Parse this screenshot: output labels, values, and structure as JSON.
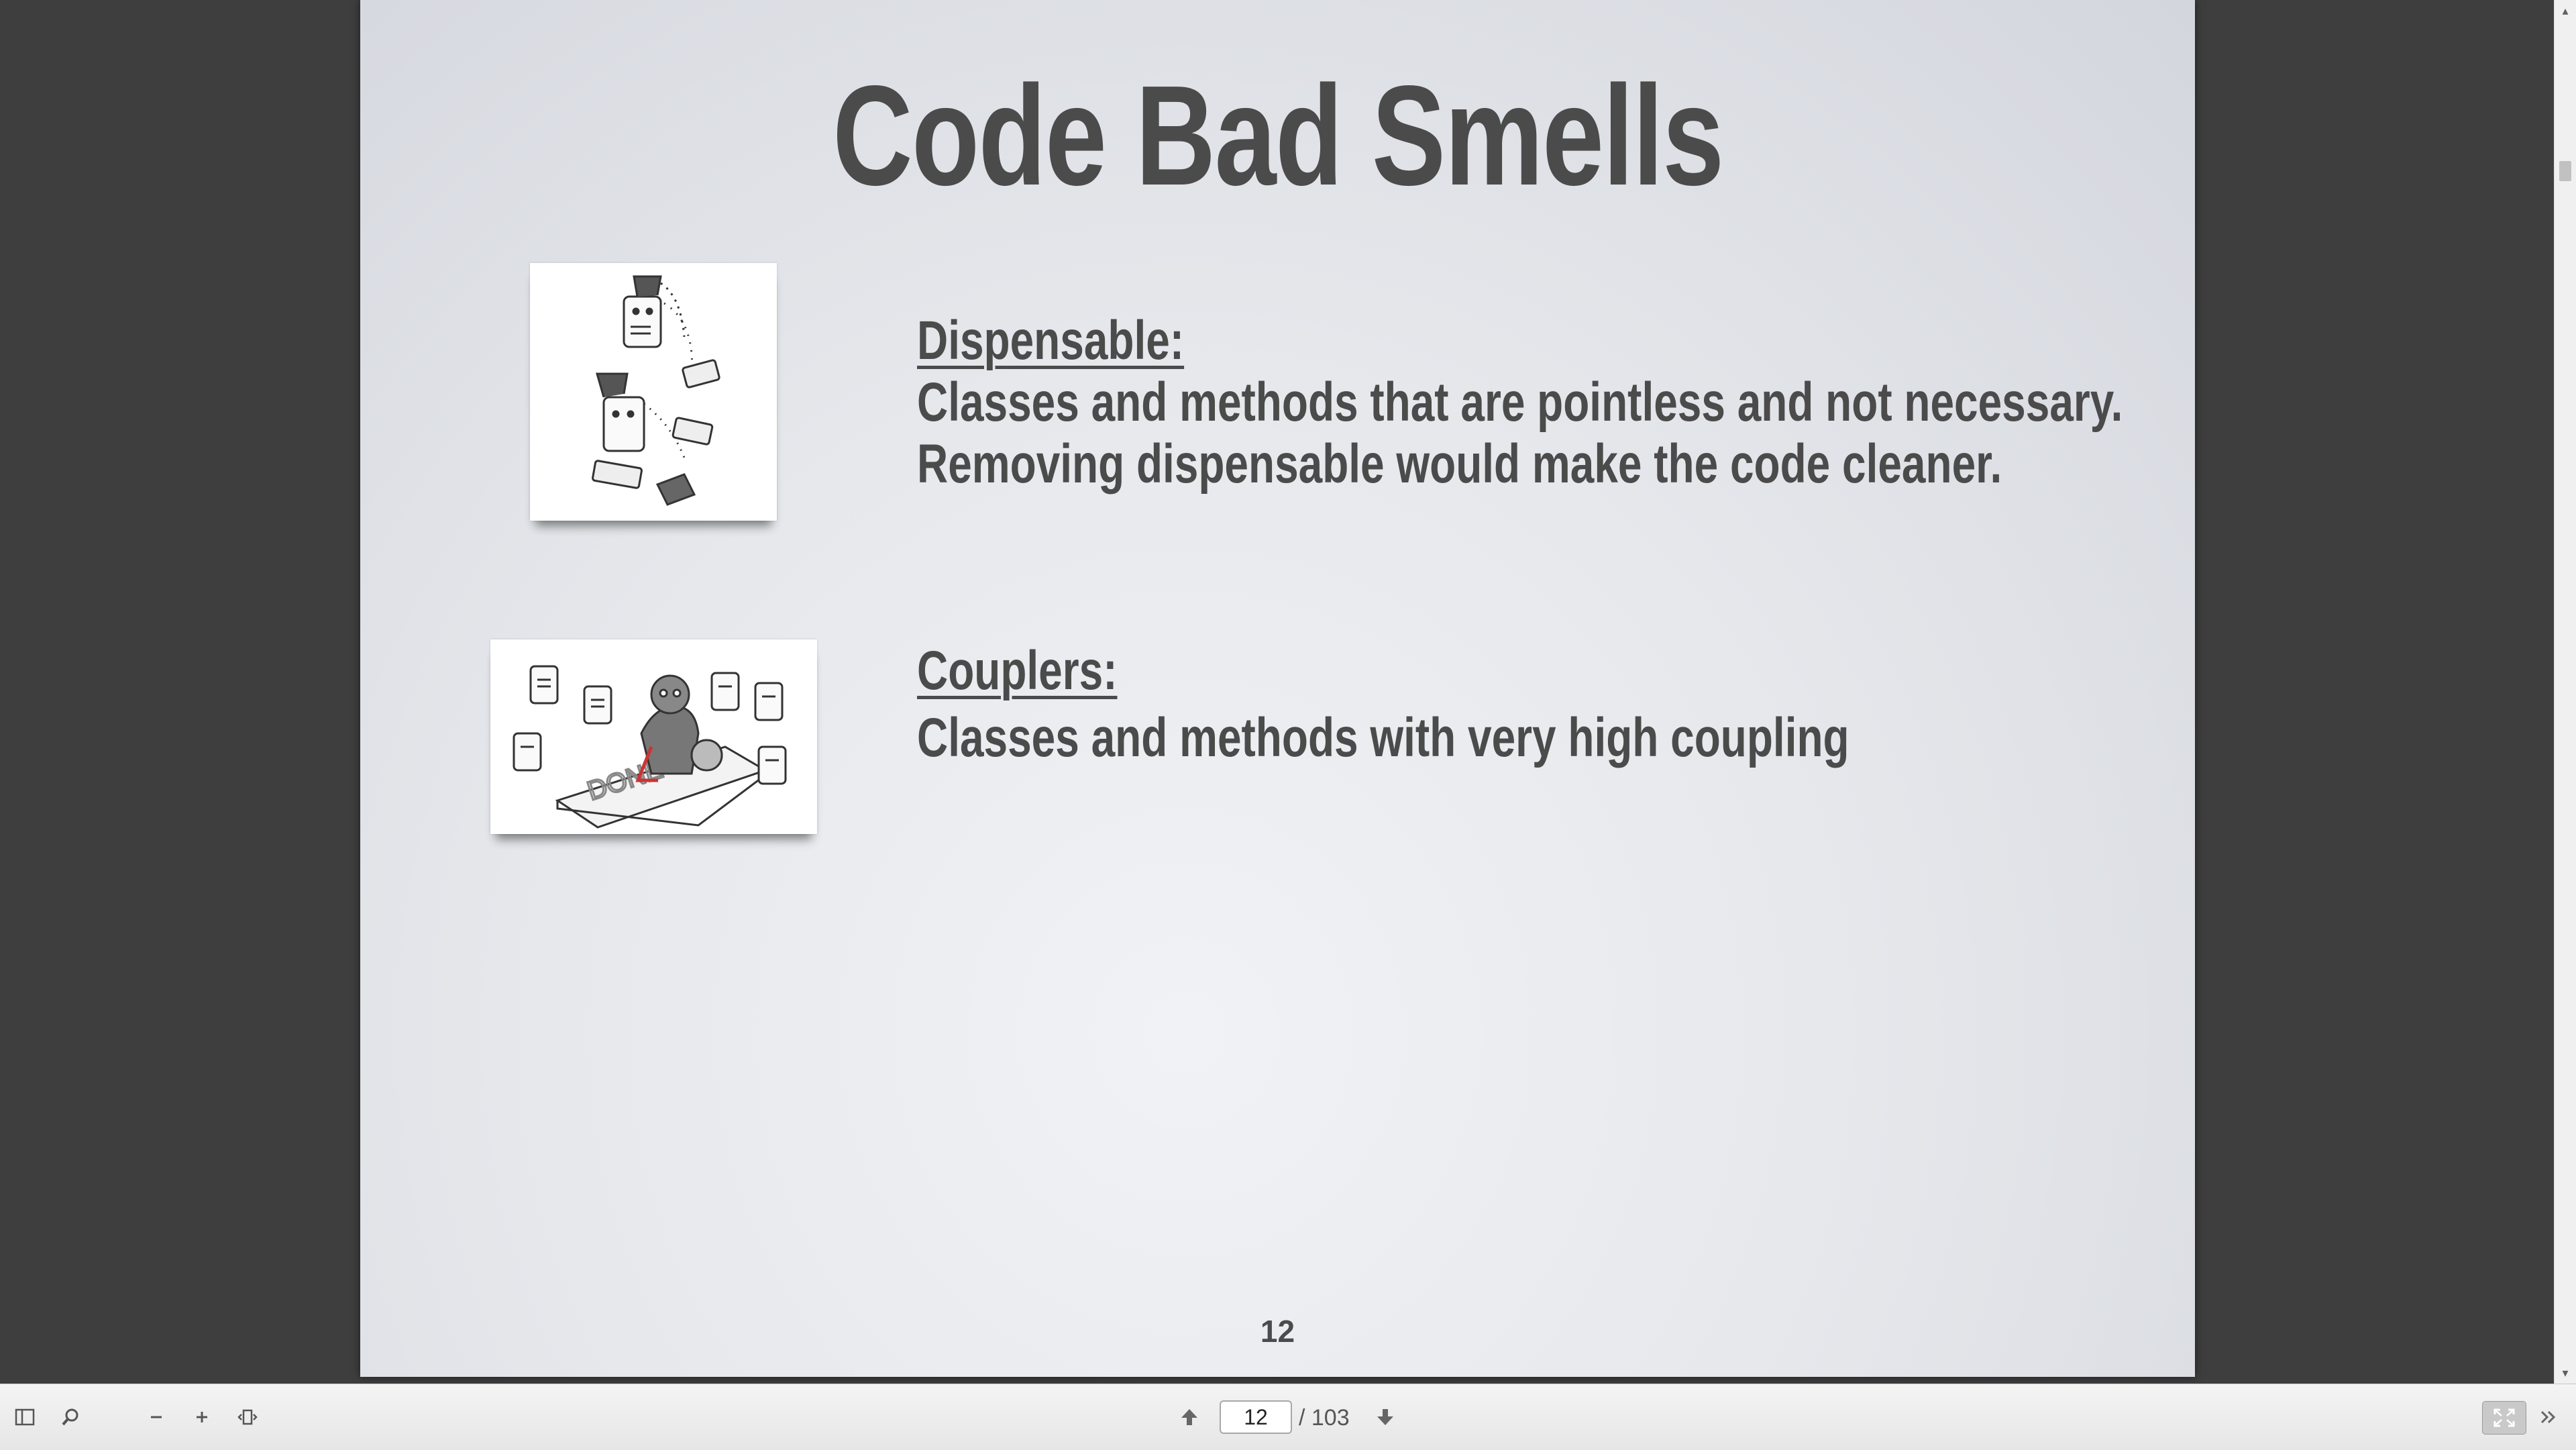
{
  "slide": {
    "title": "Code Bad Smells",
    "sections": [
      {
        "heading": "Dispensable:",
        "lines": [
          "Classes and methods that are pointless and not necessary.",
          "Removing dispensable would make the code cleaner."
        ]
      },
      {
        "heading": "Couplers:",
        "lines": [
          "Classes and methods with very high coupling"
        ]
      }
    ],
    "page_number": "12"
  },
  "toolbar": {
    "current_page": "12",
    "total_pages": "/ 103"
  },
  "icons": {
    "sidebar": "sidebar-toggle-icon",
    "search": "search-icon",
    "zoom_out": "minus-icon",
    "zoom_in": "plus-icon",
    "fit": "fit-width-icon",
    "prev": "arrow-up-icon",
    "next": "arrow-down-icon",
    "fullscreen": "fullscreen-icon",
    "more": "double-chevron-icon"
  },
  "colors": {
    "viewer_background": "#3e3e3e",
    "slide_text": "#4b4b4b",
    "toolbar_background": "#eeeeee"
  }
}
